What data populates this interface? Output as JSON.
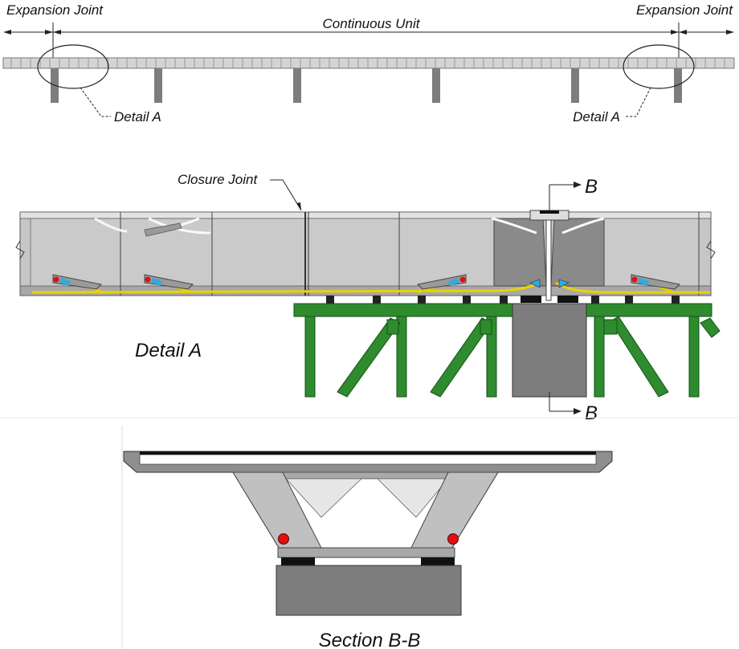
{
  "labels": {
    "expansion_joint_left": "Expansion Joint",
    "expansion_joint_right": "Expansion Joint",
    "continuous_unit": "Continuous Unit",
    "detail_a_left": "Detail A",
    "detail_a_right": "Detail A",
    "closure_joint": "Closure Joint",
    "section_mark_top": "B",
    "section_mark_bottom": "B",
    "detail_a_title": "Detail A",
    "section_title": "Section B-B"
  },
  "colors": {
    "girder": "#c4c4c4",
    "segment_dark": "#8a8a8a",
    "pier": "#7d7d7d",
    "falsework": "#2e8b2e",
    "tendon": "#e8d200",
    "anchor_red": "#dd1111",
    "anchor_blue": "#33aadd",
    "bearing": "#111111"
  }
}
